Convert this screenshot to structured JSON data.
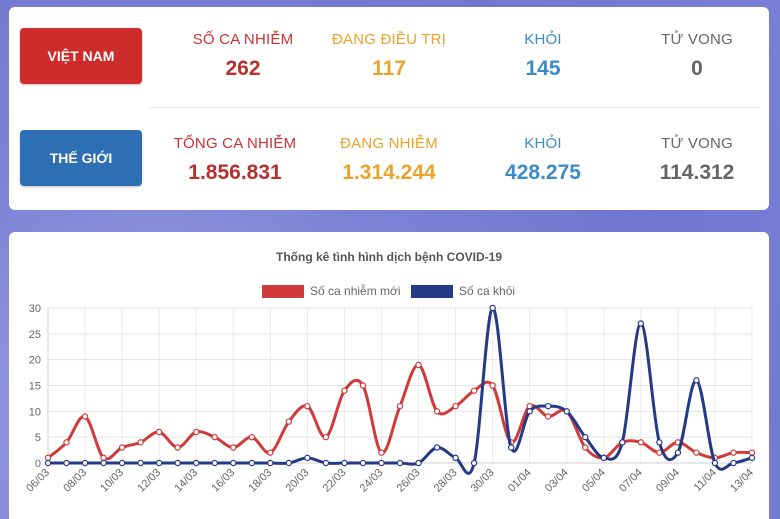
{
  "vietnam": {
    "label": "VIỆT NAM",
    "infected_label": "SỐ CA NHIỄM",
    "infected": "262",
    "treating_label": "ĐANG ĐIỀU TRỊ",
    "treating": "117",
    "recovered_label": "KHỎI",
    "recovered": "145",
    "deaths_label": "TỬ VONG",
    "deaths": "0"
  },
  "world": {
    "label": "THẾ GIỚI",
    "infected_label": "TỔNG CA NHIỄM",
    "infected": "1.856.831",
    "active_label": "ĐANG NHIỄM",
    "active": "1.314.244",
    "recovered_label": "KHỎI",
    "recovered": "428.275",
    "deaths_label": "TỬ VONG",
    "deaths": "114.312"
  },
  "colors": {
    "vn_button": "#d02b2b",
    "world_button": "#2d6fb2",
    "series_new_cases": "#d03a3a",
    "series_recovered": "#253a86"
  },
  "chart_data": {
    "type": "line",
    "title": "Thống kê tình hình dịch bệnh COVID-19",
    "ylim": [
      0,
      30
    ],
    "yticks": [
      0,
      5,
      10,
      15,
      20,
      25,
      30
    ],
    "grid": true,
    "legend_position": "top-center",
    "x": [
      "06/03",
      "07/03",
      "08/03",
      "09/03",
      "10/03",
      "11/03",
      "12/03",
      "13/03",
      "14/03",
      "15/03",
      "16/03",
      "17/03",
      "18/03",
      "19/03",
      "20/03",
      "21/03",
      "22/03",
      "23/03",
      "24/03",
      "25/03",
      "26/03",
      "27/03",
      "28/03",
      "29/03",
      "30/03",
      "31/03",
      "01/04",
      "02/04",
      "03/04",
      "04/04",
      "05/04",
      "06/04",
      "07/04",
      "08/04",
      "09/04",
      "10/04",
      "11/04",
      "12/04",
      "13/04"
    ],
    "xtick_labels": [
      "06/03",
      "08/03",
      "10/03",
      "12/03",
      "14/03",
      "16/03",
      "18/03",
      "20/03",
      "22/03",
      "24/03",
      "26/03",
      "28/03",
      "30/03",
      "01/04",
      "03/04",
      "05/04",
      "07/04",
      "09/04",
      "11/04",
      "13/04"
    ],
    "series": [
      {
        "name": "Số ca nhiễm mới",
        "color": "#d03a3a",
        "values": [
          1,
          4,
          9,
          1,
          3,
          4,
          6,
          3,
          6,
          5,
          3,
          5,
          2,
          8,
          11,
          5,
          14,
          15,
          2,
          11,
          19,
          10,
          11,
          14,
          15,
          4,
          11,
          9,
          10,
          3,
          1,
          4,
          4,
          2,
          4,
          2,
          1,
          2,
          2
        ]
      },
      {
        "name": "Số ca khỏi",
        "color": "#253a86",
        "values": [
          0,
          0,
          0,
          0,
          0,
          0,
          0,
          0,
          0,
          0,
          0,
          0,
          0,
          0,
          1,
          0,
          0,
          0,
          0,
          0,
          0,
          3,
          1,
          0,
          30,
          3,
          10,
          11,
          10,
          5,
          1,
          4,
          27,
          4,
          2,
          16,
          0,
          0,
          1
        ]
      }
    ]
  }
}
